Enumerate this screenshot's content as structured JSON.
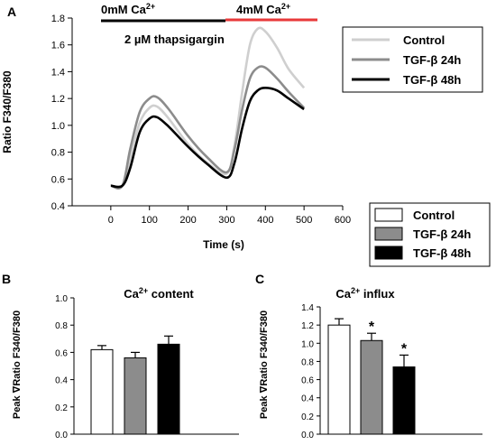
{
  "panel_a": {
    "label": "A",
    "cond_left": "0mM Ca",
    "cond_left_sup": "2+",
    "cond_right": "4mM Ca",
    "cond_right_sup": "2+",
    "drug": "2 µM thapsigargin",
    "bar_colors": {
      "left": "#000000",
      "right": "#e8393a"
    }
  },
  "legend_top": [
    {
      "label": "Control",
      "color": "#cfcfcf"
    },
    {
      "label": "TGF-β 24h",
      "color": "#8c8c8c"
    },
    {
      "label": "TGF-β 48h",
      "color": "#000000"
    }
  ],
  "legend_mid": [
    {
      "label": "Control",
      "fill": "#ffffff"
    },
    {
      "label": "TGF-β 24h",
      "fill": "#8c8c8c"
    },
    {
      "label": "TGF-β 48h",
      "fill": "#000000"
    }
  ],
  "chart_data": [
    {
      "type": "line",
      "ylabel": "Ratio F340/F380",
      "xlabel": "Time (s)",
      "xlim": [
        -100,
        600
      ],
      "ylim": [
        0.4,
        1.8
      ],
      "xticks": [
        0,
        100,
        200,
        300,
        400,
        500,
        600
      ],
      "yticks": [
        0.4,
        0.6,
        0.8,
        1.0,
        1.2,
        1.4,
        1.6,
        1.8
      ],
      "ytick_labels": [
        "0.4",
        "0.6",
        "0.8",
        "1.0",
        "1.2",
        "1.4",
        "1.6",
        "1.8"
      ],
      "legend_position": "top-right",
      "series": [
        {
          "name": "Control",
          "color": "#cfcfcf",
          "x": [
            0,
            30,
            50,
            75,
            100,
            120,
            150,
            200,
            250,
            300,
            320,
            340,
            360,
            380,
            400,
            430,
            460,
            500
          ],
          "y": [
            0.55,
            0.55,
            0.75,
            1.02,
            1.13,
            1.14,
            1.05,
            0.86,
            0.72,
            0.64,
            0.85,
            1.25,
            1.6,
            1.72,
            1.7,
            1.58,
            1.42,
            1.28
          ]
        },
        {
          "name": "TGF-β 24h",
          "color": "#8c8c8c",
          "x": [
            0,
            30,
            50,
            75,
            100,
            120,
            150,
            200,
            250,
            300,
            320,
            340,
            360,
            380,
            400,
            430,
            460,
            500
          ],
          "y": [
            0.55,
            0.55,
            0.82,
            1.1,
            1.2,
            1.21,
            1.12,
            0.92,
            0.76,
            0.65,
            0.82,
            1.12,
            1.35,
            1.43,
            1.43,
            1.35,
            1.25,
            1.13
          ]
        },
        {
          "name": "TGF-β 48h",
          "color": "#000000",
          "x": [
            0,
            30,
            50,
            75,
            100,
            120,
            150,
            200,
            250,
            300,
            320,
            340,
            360,
            380,
            400,
            430,
            460,
            500
          ],
          "y": [
            0.55,
            0.55,
            0.68,
            0.95,
            1.05,
            1.06,
            0.99,
            0.84,
            0.71,
            0.61,
            0.72,
            0.98,
            1.18,
            1.26,
            1.28,
            1.26,
            1.2,
            1.12
          ]
        }
      ]
    },
    {
      "type": "bar",
      "panel": "B",
      "title": "Ca",
      "title_sup": "2+",
      "title_suffix": " content",
      "ylabel": "Peak ∇Ratio F340/F380",
      "categories": [
        "Control",
        "TGF-β 24h",
        "TGF-β 48h"
      ],
      "values": [
        0.62,
        0.56,
        0.66
      ],
      "errors": [
        0.03,
        0.04,
        0.06
      ],
      "colors": [
        "#ffffff",
        "#8c8c8c",
        "#000000"
      ],
      "ylim": [
        0.0,
        1.0
      ],
      "yticks": [
        0.0,
        0.2,
        0.4,
        0.6,
        0.8,
        1.0
      ],
      "ytick_labels": [
        "0.0",
        "0.2",
        "0.4",
        "0.6",
        "0.8",
        "1.0"
      ]
    },
    {
      "type": "bar",
      "panel": "C",
      "title": "Ca",
      "title_sup": "2+",
      "title_suffix": " influx",
      "ylabel": "Peak ∇Ratio F340/F380",
      "categories": [
        "Control",
        "TGF-β 24h",
        "TGF-β 48h"
      ],
      "values": [
        1.2,
        1.03,
        0.74
      ],
      "errors": [
        0.07,
        0.08,
        0.13
      ],
      "colors": [
        "#ffffff",
        "#8c8c8c",
        "#000000"
      ],
      "significance": [
        "",
        "*",
        "*"
      ],
      "ylim": [
        0.0,
        1.4
      ],
      "yticks": [
        0.0,
        0.2,
        0.4,
        0.6,
        0.8,
        1.0,
        1.2,
        1.4
      ],
      "ytick_labels": [
        "0.0",
        "0.2",
        "0.4",
        "0.6",
        "0.8",
        "1.0",
        "1.2",
        "1.4"
      ]
    }
  ]
}
